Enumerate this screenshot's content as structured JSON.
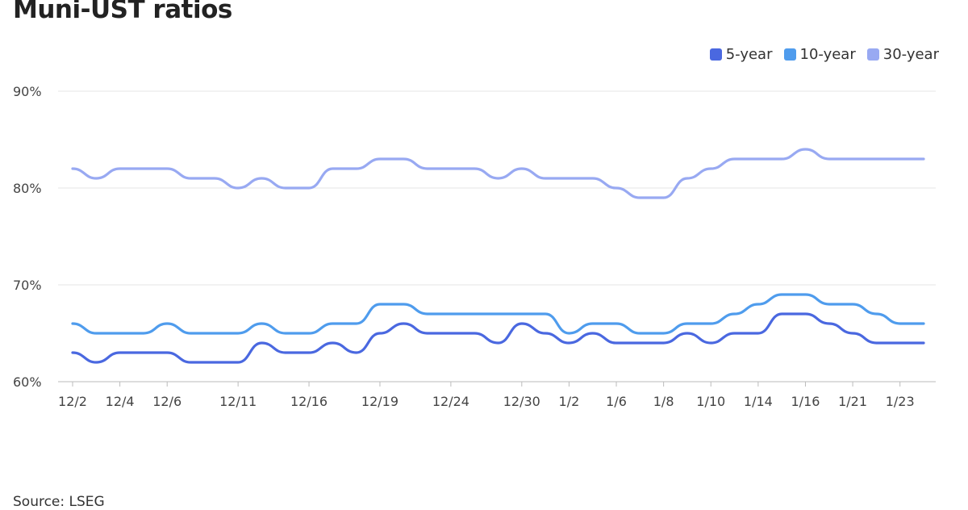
{
  "page": {
    "title": "Muni-UST ratios",
    "source": "Source: LSEG"
  },
  "colors": {
    "five_year": "#4a68e0",
    "ten_year": "#4f9ced",
    "thirty_year": "#98a9f2",
    "grid": "#e6e6e6",
    "axis": "#bbbbbb"
  },
  "chart_data": {
    "type": "line",
    "title": "Muni-UST ratios",
    "xlabel": "",
    "ylabel": "",
    "ylim": [
      60,
      90
    ],
    "yticks": [
      "60%",
      "70%",
      "80%",
      "90%"
    ],
    "ytick_values": [
      60,
      70,
      80,
      90
    ],
    "grid": true,
    "legend_position": "top-right",
    "xtick_labels": [
      {
        "label": "12/2",
        "index": 0
      },
      {
        "label": "12/4",
        "index": 2
      },
      {
        "label": "12/6",
        "index": 4
      },
      {
        "label": "12/11",
        "index": 7
      },
      {
        "label": "12/16",
        "index": 10
      },
      {
        "label": "12/19",
        "index": 13
      },
      {
        "label": "12/24",
        "index": 16
      },
      {
        "label": "12/30",
        "index": 19
      },
      {
        "label": "1/2",
        "index": 21
      },
      {
        "label": "1/6",
        "index": 23
      },
      {
        "label": "1/8",
        "index": 25
      },
      {
        "label": "1/10",
        "index": 27
      },
      {
        "label": "1/14",
        "index": 29
      },
      {
        "label": "1/16",
        "index": 31
      },
      {
        "label": "1/21",
        "index": 33
      },
      {
        "label": "1/23",
        "index": 35
      }
    ],
    "series": [
      {
        "name": "5-year",
        "color_key": "five_year",
        "values": [
          63,
          62,
          63,
          63,
          63,
          62,
          62,
          62,
          64,
          63,
          63,
          64,
          63,
          65,
          66,
          65,
          65,
          65,
          64,
          66,
          65,
          64,
          65,
          64,
          64,
          64,
          65,
          64,
          65,
          65,
          67,
          67,
          66,
          65,
          64,
          64,
          64
        ]
      },
      {
        "name": "10-year",
        "color_key": "ten_year",
        "values": [
          66,
          65,
          65,
          65,
          66,
          65,
          65,
          65,
          66,
          65,
          65,
          66,
          66,
          68,
          68,
          67,
          67,
          67,
          67,
          67,
          67,
          65,
          66,
          66,
          65,
          65,
          66,
          66,
          67,
          68,
          69,
          69,
          68,
          68,
          67,
          66,
          66
        ]
      },
      {
        "name": "30-year",
        "color_key": "thirty_year",
        "values": [
          82,
          81,
          82,
          82,
          82,
          81,
          81,
          80,
          81,
          80,
          80,
          82,
          82,
          83,
          83,
          82,
          82,
          82,
          81,
          82,
          81,
          81,
          81,
          80,
          79,
          79,
          81,
          82,
          83,
          83,
          83,
          84,
          83,
          83,
          83,
          83,
          83
        ]
      }
    ]
  }
}
